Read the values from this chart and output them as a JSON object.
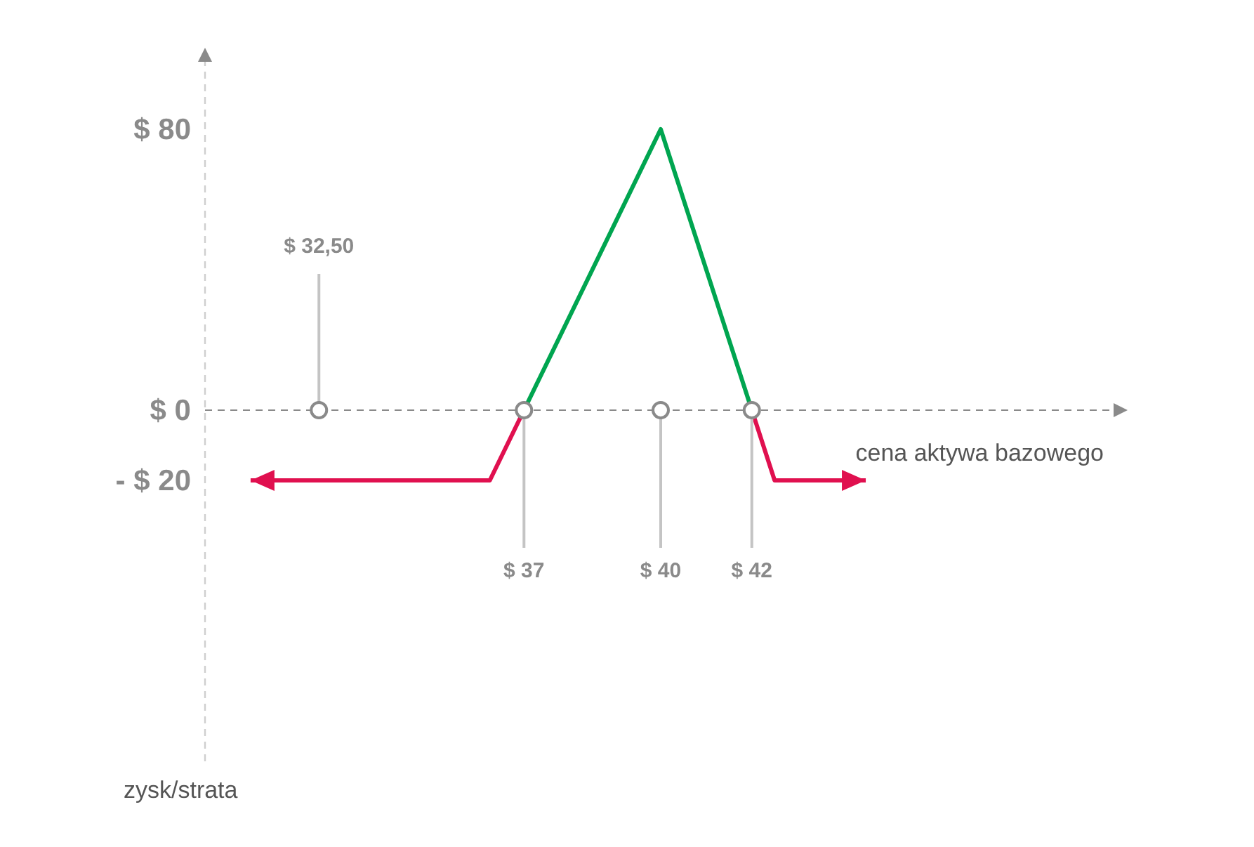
{
  "chart_data": {
    "type": "line",
    "xlabel": "cena aktywa bazowego",
    "ylabel": "zysk/strata",
    "xlim": [
      30,
      50
    ],
    "ylim": [
      -100,
      100
    ],
    "xticks": [
      {
        "value": 37,
        "label": "$ 37"
      },
      {
        "value": 40,
        "label": "$ 40"
      },
      {
        "value": 42,
        "label": "$ 42"
      }
    ],
    "yticks": [
      {
        "value": 80,
        "label": "$ 80"
      },
      {
        "value": 0,
        "label": "$ 0"
      },
      {
        "value": -20,
        "label": "- $ 20"
      }
    ],
    "annotations": [
      {
        "text": "$ 32,50",
        "x": 32.5,
        "y": 0
      }
    ],
    "line_style": "solid",
    "series": [
      {
        "color": "#e0104f",
        "x": [
          31,
          36.25,
          37
        ],
        "values": [
          -20,
          -20,
          0
        ]
      },
      {
        "color": "#00a550",
        "x": [
          37,
          40,
          42
        ],
        "values": [
          0,
          80,
          0
        ]
      },
      {
        "color": "#e0104f",
        "x": [
          42,
          42.5,
          44.5
        ],
        "values": [
          0,
          -20,
          -20
        ]
      }
    ]
  }
}
